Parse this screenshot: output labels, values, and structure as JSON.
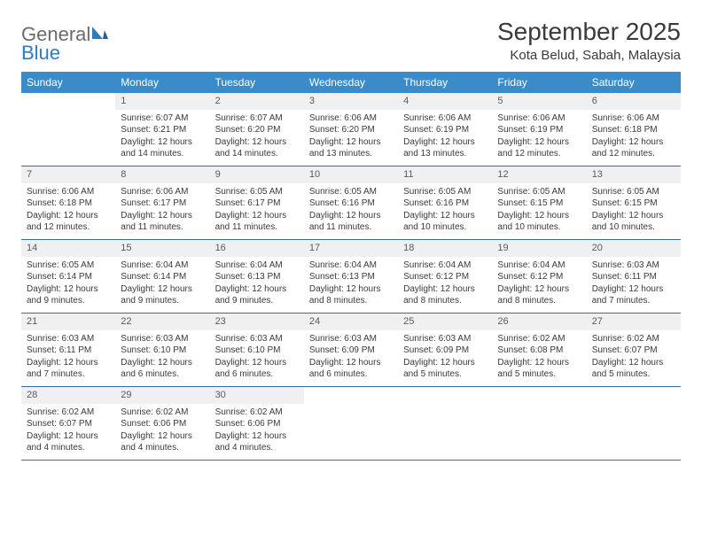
{
  "logo": {
    "general": "General",
    "blue": "Blue"
  },
  "title": "September 2025",
  "location": "Kota Belud, Sabah, Malaysia",
  "colors": {
    "header_bg": "#3b8bc8",
    "header_text": "#ffffff",
    "daynum_bg": "#eef0f1",
    "week_border": "#2f6fa8",
    "text": "#3a3a3a",
    "logo_gray": "#6b6b6b",
    "logo_blue": "#2f7bbf"
  },
  "dow": [
    "Sunday",
    "Monday",
    "Tuesday",
    "Wednesday",
    "Thursday",
    "Friday",
    "Saturday"
  ],
  "weeks": [
    [
      {
        "empty": true
      },
      {
        "n": "1",
        "sr": "Sunrise: 6:07 AM",
        "ss": "Sunset: 6:21 PM",
        "d1": "Daylight: 12 hours",
        "d2": "and 14 minutes."
      },
      {
        "n": "2",
        "sr": "Sunrise: 6:07 AM",
        "ss": "Sunset: 6:20 PM",
        "d1": "Daylight: 12 hours",
        "d2": "and 14 minutes."
      },
      {
        "n": "3",
        "sr": "Sunrise: 6:06 AM",
        "ss": "Sunset: 6:20 PM",
        "d1": "Daylight: 12 hours",
        "d2": "and 13 minutes."
      },
      {
        "n": "4",
        "sr": "Sunrise: 6:06 AM",
        "ss": "Sunset: 6:19 PM",
        "d1": "Daylight: 12 hours",
        "d2": "and 13 minutes."
      },
      {
        "n": "5",
        "sr": "Sunrise: 6:06 AM",
        "ss": "Sunset: 6:19 PM",
        "d1": "Daylight: 12 hours",
        "d2": "and 12 minutes."
      },
      {
        "n": "6",
        "sr": "Sunrise: 6:06 AM",
        "ss": "Sunset: 6:18 PM",
        "d1": "Daylight: 12 hours",
        "d2": "and 12 minutes."
      }
    ],
    [
      {
        "n": "7",
        "sr": "Sunrise: 6:06 AM",
        "ss": "Sunset: 6:18 PM",
        "d1": "Daylight: 12 hours",
        "d2": "and 12 minutes."
      },
      {
        "n": "8",
        "sr": "Sunrise: 6:06 AM",
        "ss": "Sunset: 6:17 PM",
        "d1": "Daylight: 12 hours",
        "d2": "and 11 minutes."
      },
      {
        "n": "9",
        "sr": "Sunrise: 6:05 AM",
        "ss": "Sunset: 6:17 PM",
        "d1": "Daylight: 12 hours",
        "d2": "and 11 minutes."
      },
      {
        "n": "10",
        "sr": "Sunrise: 6:05 AM",
        "ss": "Sunset: 6:16 PM",
        "d1": "Daylight: 12 hours",
        "d2": "and 11 minutes."
      },
      {
        "n": "11",
        "sr": "Sunrise: 6:05 AM",
        "ss": "Sunset: 6:16 PM",
        "d1": "Daylight: 12 hours",
        "d2": "and 10 minutes."
      },
      {
        "n": "12",
        "sr": "Sunrise: 6:05 AM",
        "ss": "Sunset: 6:15 PM",
        "d1": "Daylight: 12 hours",
        "d2": "and 10 minutes."
      },
      {
        "n": "13",
        "sr": "Sunrise: 6:05 AM",
        "ss": "Sunset: 6:15 PM",
        "d1": "Daylight: 12 hours",
        "d2": "and 10 minutes."
      }
    ],
    [
      {
        "n": "14",
        "sr": "Sunrise: 6:05 AM",
        "ss": "Sunset: 6:14 PM",
        "d1": "Daylight: 12 hours",
        "d2": "and 9 minutes."
      },
      {
        "n": "15",
        "sr": "Sunrise: 6:04 AM",
        "ss": "Sunset: 6:14 PM",
        "d1": "Daylight: 12 hours",
        "d2": "and 9 minutes."
      },
      {
        "n": "16",
        "sr": "Sunrise: 6:04 AM",
        "ss": "Sunset: 6:13 PM",
        "d1": "Daylight: 12 hours",
        "d2": "and 9 minutes."
      },
      {
        "n": "17",
        "sr": "Sunrise: 6:04 AM",
        "ss": "Sunset: 6:13 PM",
        "d1": "Daylight: 12 hours",
        "d2": "and 8 minutes."
      },
      {
        "n": "18",
        "sr": "Sunrise: 6:04 AM",
        "ss": "Sunset: 6:12 PM",
        "d1": "Daylight: 12 hours",
        "d2": "and 8 minutes."
      },
      {
        "n": "19",
        "sr": "Sunrise: 6:04 AM",
        "ss": "Sunset: 6:12 PM",
        "d1": "Daylight: 12 hours",
        "d2": "and 8 minutes."
      },
      {
        "n": "20",
        "sr": "Sunrise: 6:03 AM",
        "ss": "Sunset: 6:11 PM",
        "d1": "Daylight: 12 hours",
        "d2": "and 7 minutes."
      }
    ],
    [
      {
        "n": "21",
        "sr": "Sunrise: 6:03 AM",
        "ss": "Sunset: 6:11 PM",
        "d1": "Daylight: 12 hours",
        "d2": "and 7 minutes."
      },
      {
        "n": "22",
        "sr": "Sunrise: 6:03 AM",
        "ss": "Sunset: 6:10 PM",
        "d1": "Daylight: 12 hours",
        "d2": "and 6 minutes."
      },
      {
        "n": "23",
        "sr": "Sunrise: 6:03 AM",
        "ss": "Sunset: 6:10 PM",
        "d1": "Daylight: 12 hours",
        "d2": "and 6 minutes."
      },
      {
        "n": "24",
        "sr": "Sunrise: 6:03 AM",
        "ss": "Sunset: 6:09 PM",
        "d1": "Daylight: 12 hours",
        "d2": "and 6 minutes."
      },
      {
        "n": "25",
        "sr": "Sunrise: 6:03 AM",
        "ss": "Sunset: 6:09 PM",
        "d1": "Daylight: 12 hours",
        "d2": "and 5 minutes."
      },
      {
        "n": "26",
        "sr": "Sunrise: 6:02 AM",
        "ss": "Sunset: 6:08 PM",
        "d1": "Daylight: 12 hours",
        "d2": "and 5 minutes."
      },
      {
        "n": "27",
        "sr": "Sunrise: 6:02 AM",
        "ss": "Sunset: 6:07 PM",
        "d1": "Daylight: 12 hours",
        "d2": "and 5 minutes."
      }
    ],
    [
      {
        "n": "28",
        "sr": "Sunrise: 6:02 AM",
        "ss": "Sunset: 6:07 PM",
        "d1": "Daylight: 12 hours",
        "d2": "and 4 minutes."
      },
      {
        "n": "29",
        "sr": "Sunrise: 6:02 AM",
        "ss": "Sunset: 6:06 PM",
        "d1": "Daylight: 12 hours",
        "d2": "and 4 minutes."
      },
      {
        "n": "30",
        "sr": "Sunrise: 6:02 AM",
        "ss": "Sunset: 6:06 PM",
        "d1": "Daylight: 12 hours",
        "d2": "and 4 minutes."
      },
      {
        "empty": true
      },
      {
        "empty": true
      },
      {
        "empty": true
      },
      {
        "empty": true
      }
    ]
  ]
}
